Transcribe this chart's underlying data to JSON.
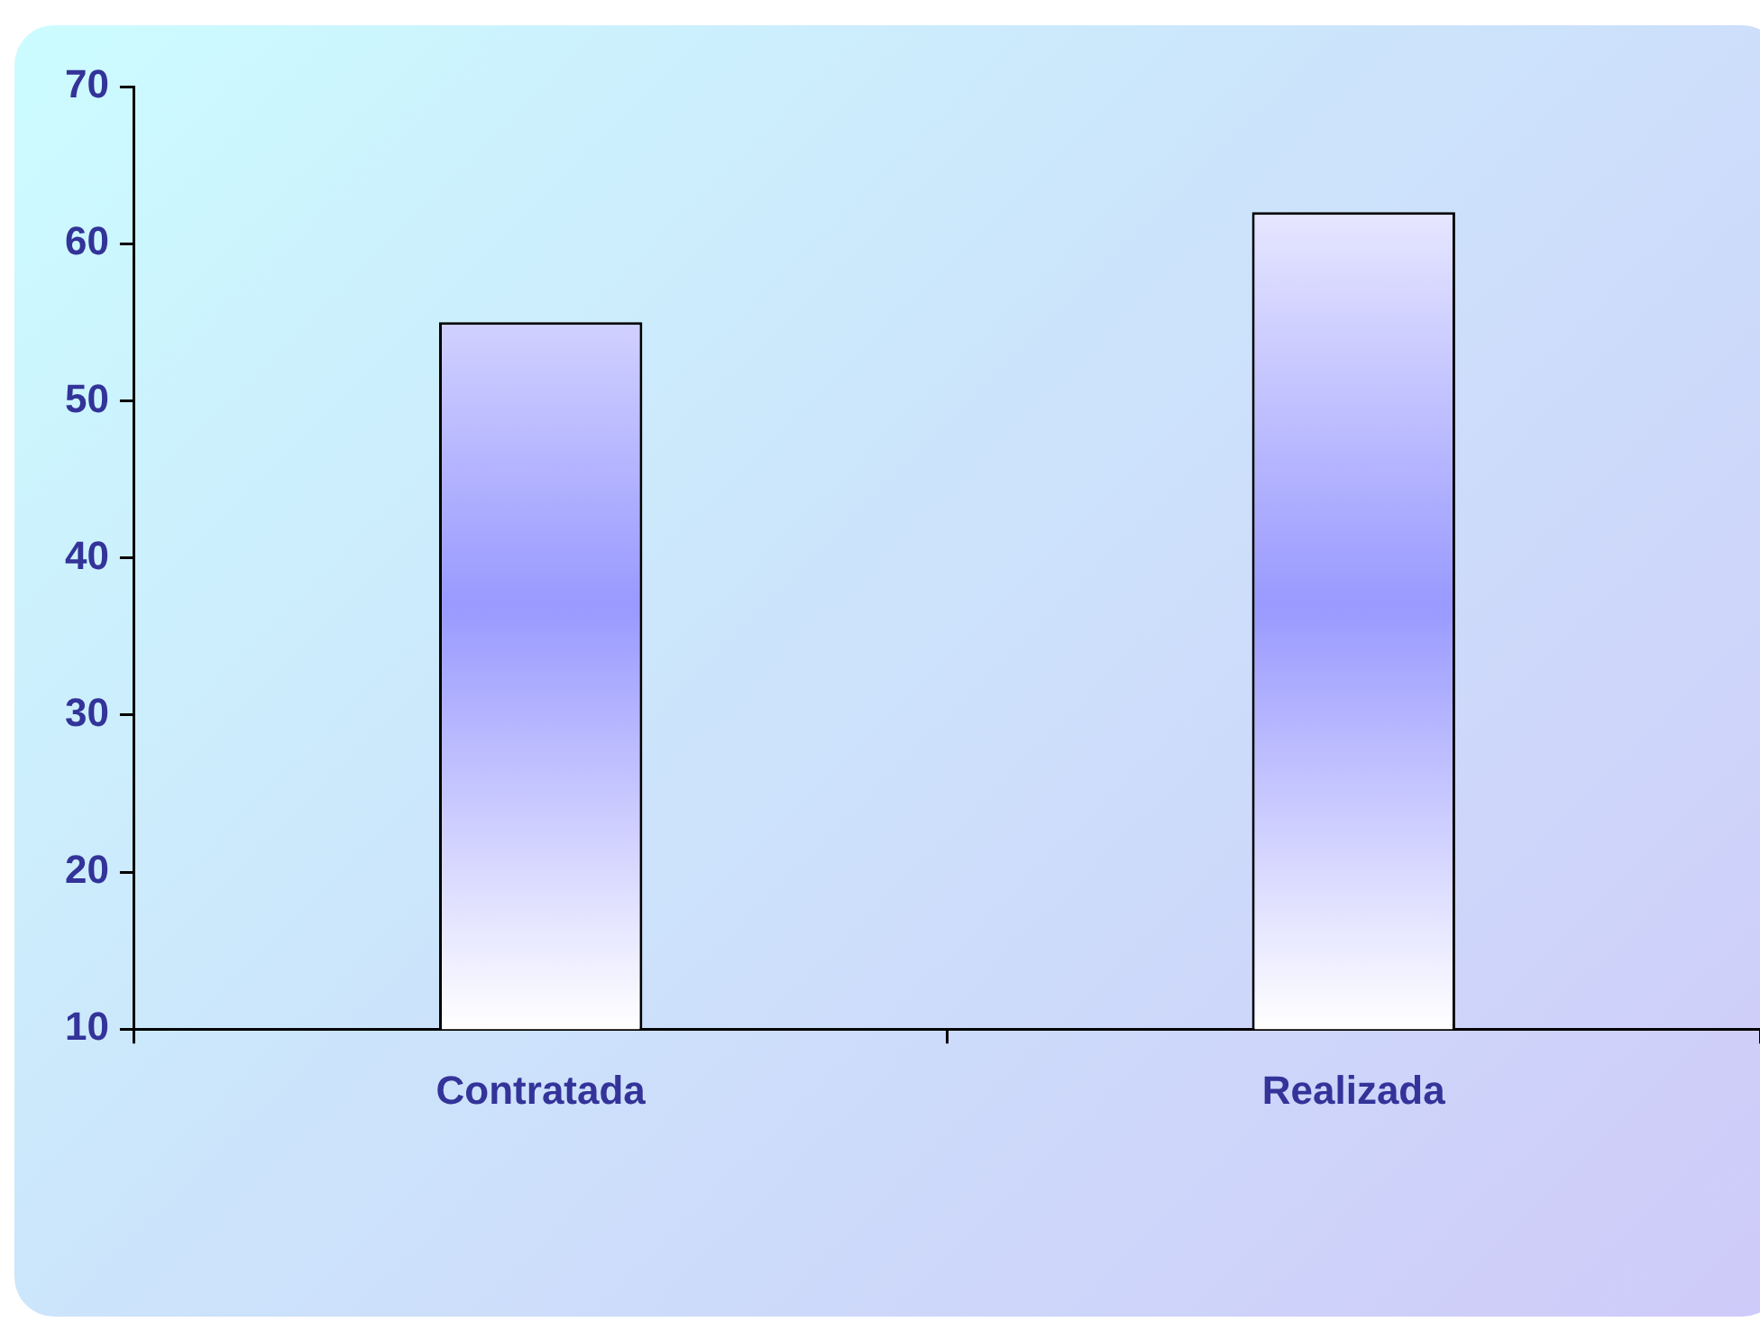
{
  "chart_data": {
    "type": "bar",
    "categories": [
      "Contratada",
      "Realizada"
    ],
    "values": [
      55,
      62
    ],
    "color": "#9999ff",
    "ylim": [
      10,
      70
    ],
    "yticks": [
      10,
      20,
      30,
      40,
      50,
      60,
      70
    ],
    "grid": false,
    "legend": false
  }
}
